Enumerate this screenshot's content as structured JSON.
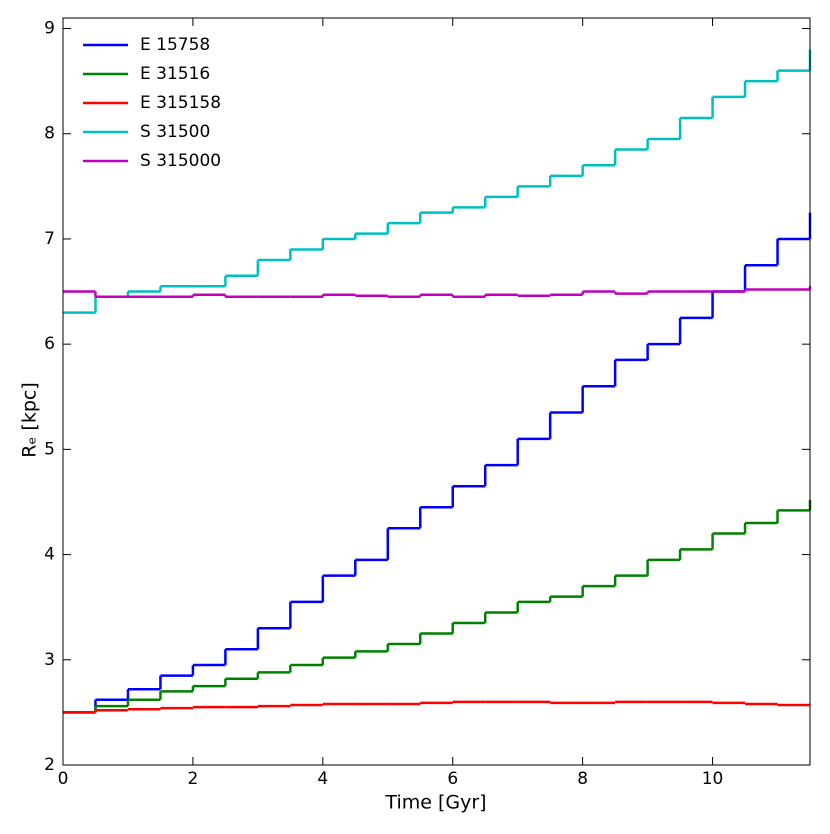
{
  "chart_data": {
    "type": "line",
    "drawstyle": "steps-post",
    "x_label": "Time [Gyr]",
    "y_label": "Rₑ [kpc]",
    "x": [
      0,
      0.5,
      1,
      1.5,
      2,
      2.5,
      3,
      3.5,
      4,
      4.5,
      5,
      5.5,
      6,
      6.5,
      7,
      7.5,
      8,
      8.5,
      9,
      9.5,
      10,
      10.5,
      11,
      11.5
    ],
    "series": [
      {
        "name": "E 15758",
        "color": "#0000ff",
        "values": [
          2.5,
          2.62,
          2.72,
          2.85,
          2.95,
          3.1,
          3.3,
          3.55,
          3.8,
          3.95,
          4.25,
          4.45,
          4.65,
          4.85,
          5.1,
          5.35,
          5.6,
          5.85,
          6.0,
          6.25,
          6.5,
          6.75,
          7.0,
          7.25
        ]
      },
      {
        "name": "E 31516",
        "color": "#008000",
        "values": [
          2.5,
          2.56,
          2.62,
          2.7,
          2.75,
          2.82,
          2.88,
          2.95,
          3.02,
          3.08,
          3.15,
          3.25,
          3.35,
          3.45,
          3.55,
          3.6,
          3.7,
          3.8,
          3.95,
          4.05,
          4.2,
          4.3,
          4.42,
          4.52
        ]
      },
      {
        "name": "E 315158",
        "color": "#ff0000",
        "values": [
          2.5,
          2.52,
          2.53,
          2.54,
          2.55,
          2.55,
          2.56,
          2.57,
          2.58,
          2.58,
          2.58,
          2.59,
          2.6,
          2.6,
          2.6,
          2.59,
          2.59,
          2.6,
          2.6,
          2.6,
          2.59,
          2.58,
          2.57,
          2.57
        ]
      },
      {
        "name": "S 31500",
        "color": "#00bfbf",
        "values": [
          6.3,
          6.45,
          6.5,
          6.55,
          6.55,
          6.65,
          6.8,
          6.9,
          7.0,
          7.05,
          7.15,
          7.25,
          7.3,
          7.4,
          7.5,
          7.6,
          7.7,
          7.85,
          7.95,
          8.15,
          8.35,
          8.5,
          8.6,
          8.8
        ]
      },
      {
        "name": "S 315000",
        "color": "#bf00bf",
        "values": [
          6.5,
          6.45,
          6.45,
          6.45,
          6.47,
          6.45,
          6.45,
          6.45,
          6.47,
          6.46,
          6.45,
          6.47,
          6.45,
          6.47,
          6.46,
          6.47,
          6.5,
          6.48,
          6.5,
          6.5,
          6.5,
          6.52,
          6.52,
          6.55
        ]
      }
    ],
    "xlim": [
      0,
      11.5
    ],
    "ylim": [
      2,
      9.1
    ],
    "xticks": [
      0,
      2,
      4,
      6,
      8,
      10
    ],
    "yticks": [
      2,
      3,
      4,
      5,
      6,
      7,
      8,
      9
    ],
    "legend": "upper left",
    "grid": false
  }
}
